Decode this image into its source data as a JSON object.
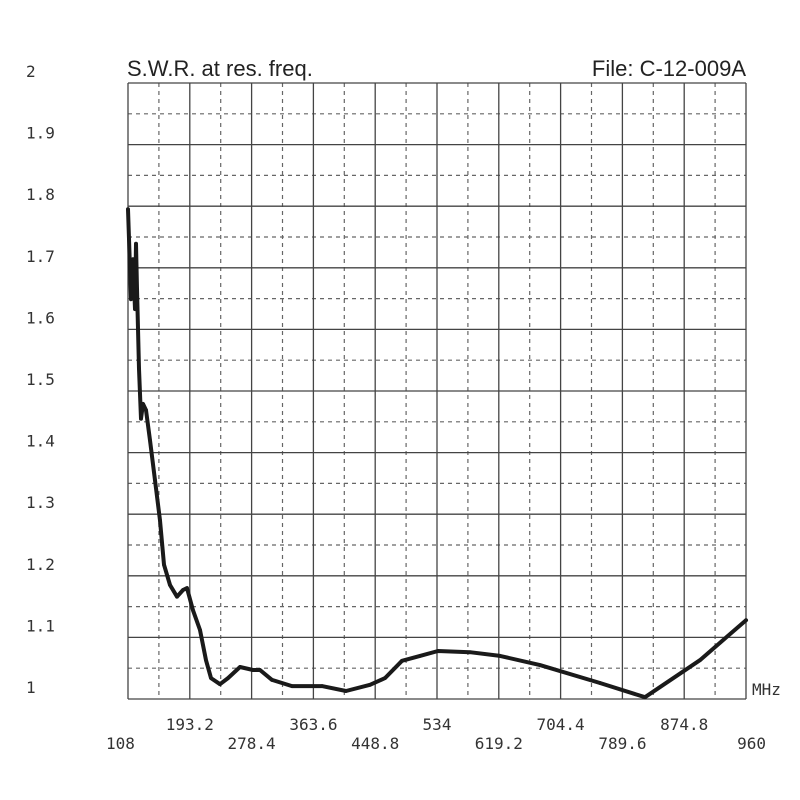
{
  "chart_data": {
    "type": "line",
    "title": "S.W.R. at res. freq.",
    "file_label": "File:  C-12-009A",
    "xlabel": "MHz",
    "ylabel": "",
    "xlim": [
      108,
      960
    ],
    "ylim": [
      1,
      2
    ],
    "grid": true,
    "x_ticks": [
      "108",
      "193.2",
      "278.4",
      "363.6",
      "448.8",
      "534",
      "619.2",
      "704.4",
      "789.6",
      "874.8",
      "960"
    ],
    "y_ticks": [
      "1",
      "1.1",
      "1.2",
      "1.3",
      "1.4",
      "1.5",
      "1.6",
      "1.7",
      "1.8",
      "1.9",
      "2"
    ],
    "series": [
      {
        "name": "SWR",
        "color": "#1a1a1a",
        "x": [
          108,
          109.4,
          112.1,
          114.9,
          117.7,
          119.0,
          120.4,
          123.2,
          125.9,
          128.7,
          132.8,
          138.3,
          145.2,
          152.1,
          157.6,
          165.9,
          175.6,
          183.8,
          189.3,
          197.6,
          207.3,
          215.5,
          222.4,
          234.8,
          245.9,
          262.4,
          280.3,
          290.0,
          306.5,
          334.1,
          375.5,
          408.5,
          441.6,
          462.3,
          485.7,
          510.6,
          535.4,
          579.5,
          620.8,
          676.0,
          758.7,
          820.7,
          896.5,
          960
        ],
        "y": [
          1.795,
          1.747,
          1.649,
          1.714,
          1.633,
          1.739,
          1.666,
          1.536,
          1.455,
          1.479,
          1.469,
          1.42,
          1.355,
          1.29,
          1.218,
          1.185,
          1.166,
          1.177,
          1.18,
          1.144,
          1.112,
          1.063,
          1.034,
          1.024,
          1.034,
          1.052,
          1.047,
          1.047,
          1.031,
          1.021,
          1.021,
          1.013,
          1.023,
          1.034,
          1.062,
          1.07,
          1.078,
          1.076,
          1.07,
          1.055,
          1.026,
          1.003,
          1.063,
          1.128
        ]
      }
    ]
  }
}
